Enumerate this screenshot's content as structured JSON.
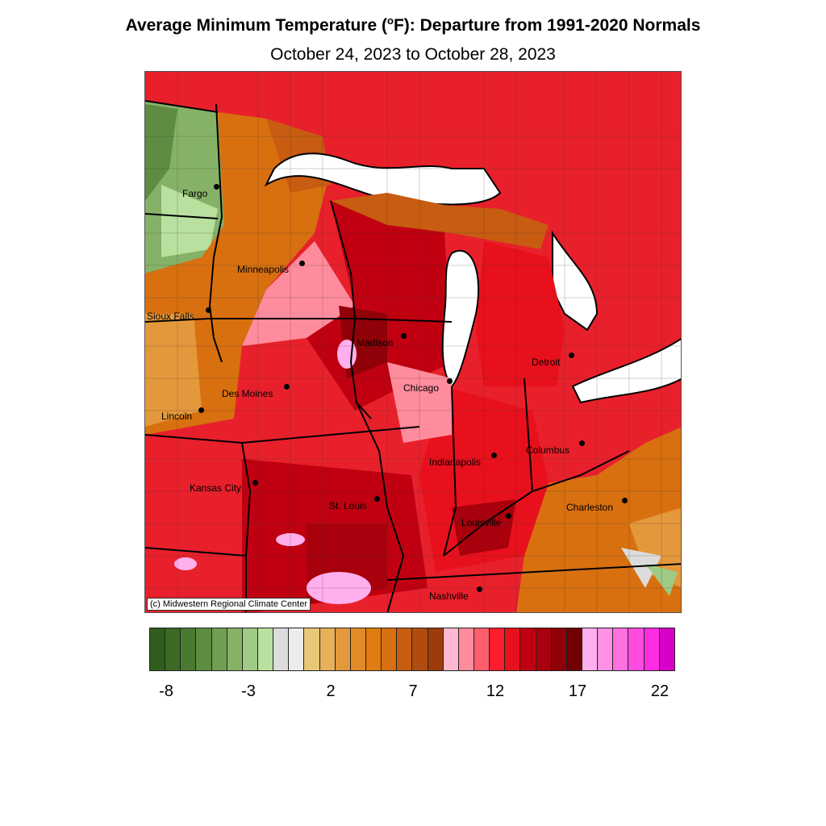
{
  "title_main": "Average Minimum Temperature (",
  "title_deg": "o",
  "title_rest": "F): Departure from 1991-2020 Normals",
  "subtitle": "October 24, 2023 to October 28, 2023",
  "copyright": "(c) Midwestern Regional Climate Center",
  "cities": [
    {
      "name": "Fargo"
    },
    {
      "name": "Minneapolis"
    },
    {
      "name": "Sioux Falls"
    },
    {
      "name": "Madison"
    },
    {
      "name": "Detroit"
    },
    {
      "name": "Des Moines"
    },
    {
      "name": "Chicago"
    },
    {
      "name": "Lincoln"
    },
    {
      "name": "Columbus"
    },
    {
      "name": "Indianapolis"
    },
    {
      "name": "Kansas City"
    },
    {
      "name": "Charleston"
    },
    {
      "name": "St. Louis"
    },
    {
      "name": "Louisville"
    },
    {
      "name": "Nashville"
    }
  ],
  "legend": {
    "colors": [
      "#2f5e1e",
      "#3b6b25",
      "#4a7a31",
      "#5d8c43",
      "#709e53",
      "#86b268",
      "#9fcb84",
      "#b9e09f",
      "#dcdcdc",
      "#ececec",
      "#e8c878",
      "#e8b058",
      "#e4983c",
      "#e08a28",
      "#e07c10",
      "#d87010",
      "#c85c10",
      "#b04c10",
      "#9c3c0c",
      "#ffb8d0",
      "#ff8c9c",
      "#ff5c6c",
      "#ff1c2c",
      "#e8101c",
      "#c00010",
      "#a8000c",
      "#900008",
      "#700004",
      "#ffb0ec",
      "#ff90e4",
      "#ff70e0",
      "#ff4ce0",
      "#ff2ce4",
      "#d800c8"
    ],
    "ticks": [
      "-8",
      "-3",
      "2",
      "7",
      "12",
      "17",
      "22"
    ]
  }
}
